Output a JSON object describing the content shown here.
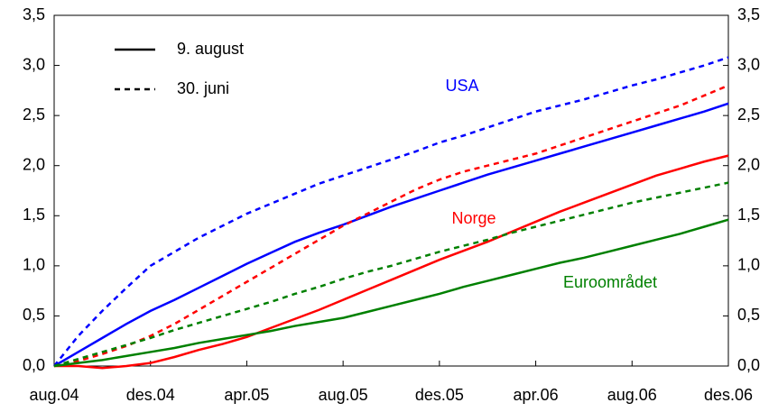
{
  "chart_data": {
    "type": "line",
    "categories": [
      "aug.04",
      null,
      null,
      null,
      "des.04",
      null,
      null,
      null,
      "apr.05",
      null,
      null,
      null,
      "aug.05",
      null,
      null,
      null,
      "des.05",
      null,
      null,
      null,
      "apr.06",
      null,
      null,
      null,
      "aug.06",
      null,
      null,
      null,
      "des.06"
    ],
    "ylim": [
      0,
      3.5
    ],
    "yticks": [
      {
        "value": 0,
        "label": "0,0"
      },
      {
        "value": 0.5,
        "label": "0,5"
      },
      {
        "value": 1,
        "label": "1,0"
      },
      {
        "value": 1.5,
        "label": "1,5"
      },
      {
        "value": 2,
        "label": "2,0"
      },
      {
        "value": 2.5,
        "label": "2,5"
      },
      {
        "value": 3,
        "label": "3,0"
      },
      {
        "value": 3.5,
        "label": "3,5"
      }
    ],
    "y2lim": [
      0,
      3.5
    ],
    "y2ticks": [
      {
        "value": 0,
        "label": "0,0"
      },
      {
        "value": 0.5,
        "label": "0,5"
      },
      {
        "value": 1,
        "label": "1,0"
      },
      {
        "value": 1.5,
        "label": "1,5"
      },
      {
        "value": 2,
        "label": "2,0"
      },
      {
        "value": 2.5,
        "label": "2,5"
      },
      {
        "value": 3,
        "label": "3,0"
      },
      {
        "value": 3.5,
        "label": "3,5"
      }
    ],
    "legend": [
      {
        "label": "9. august",
        "dashed": false
      },
      {
        "label": "30. juni",
        "dashed": true
      }
    ],
    "series": [
      {
        "name": "USA",
        "color": "#0000ff",
        "lines": [
          {
            "values": [
              0,
              0.14,
              0.28,
              0.42,
              0.55,
              0.66,
              0.78,
              0.9,
              1.02,
              1.13,
              1.24,
              1.33,
              1.41,
              1.5,
              1.59,
              1.67,
              1.75,
              1.83,
              1.91,
              1.98,
              2.05,
              2.12,
              2.19,
              2.26,
              2.33,
              2.4,
              2.47,
              2.54,
              2.62
            ]
          },
          {
            "values": [
              0,
              0.3,
              0.55,
              0.78,
              1.0,
              1.14,
              1.28,
              1.4,
              1.52,
              1.62,
              1.72,
              1.82,
              1.9,
              1.98,
              2.06,
              2.14,
              2.23,
              2.3,
              2.38,
              2.46,
              2.54,
              2.6,
              2.66,
              2.73,
              2.8,
              2.86,
              2.93,
              3.0,
              3.08
            ]
          }
        ]
      },
      {
        "name": "Norge",
        "color": "#ff0000",
        "lines": [
          {
            "values": [
              0,
              0,
              -0.02,
              0,
              0.03,
              0.09,
              0.16,
              0.22,
              0.29,
              0.38,
              0.47,
              0.56,
              0.66,
              0.76,
              0.86,
              0.96,
              1.06,
              1.15,
              1.24,
              1.34,
              1.44,
              1.54,
              1.63,
              1.72,
              1.81,
              1.9,
              1.97,
              2.04,
              2.1
            ]
          },
          {
            "values": [
              0,
              0.05,
              0.12,
              0.2,
              0.3,
              0.42,
              0.56,
              0.7,
              0.84,
              0.98,
              1.12,
              1.26,
              1.4,
              1.52,
              1.64,
              1.76,
              1.86,
              1.94,
              2.0,
              2.06,
              2.12,
              2.2,
              2.28,
              2.36,
              2.44,
              2.52,
              2.6,
              2.7,
              2.8
            ]
          }
        ]
      },
      {
        "name": "Euroområdet",
        "color": "#008000",
        "lines": [
          {
            "values": [
              0,
              0.03,
              0.06,
              0.1,
              0.14,
              0.18,
              0.23,
              0.27,
              0.31,
              0.35,
              0.4,
              0.44,
              0.48,
              0.54,
              0.6,
              0.66,
              0.72,
              0.79,
              0.85,
              0.91,
              0.97,
              1.03,
              1.08,
              1.14,
              1.2,
              1.26,
              1.32,
              1.39,
              1.46
            ]
          },
          {
            "values": [
              0,
              0.07,
              0.14,
              0.21,
              0.28,
              0.36,
              0.43,
              0.5,
              0.57,
              0.64,
              0.72,
              0.79,
              0.87,
              0.94,
              1.0,
              1.07,
              1.14,
              1.2,
              1.26,
              1.33,
              1.39,
              1.45,
              1.51,
              1.57,
              1.63,
              1.68,
              1.73,
              1.78,
              1.83
            ]
          }
        ]
      }
    ]
  }
}
